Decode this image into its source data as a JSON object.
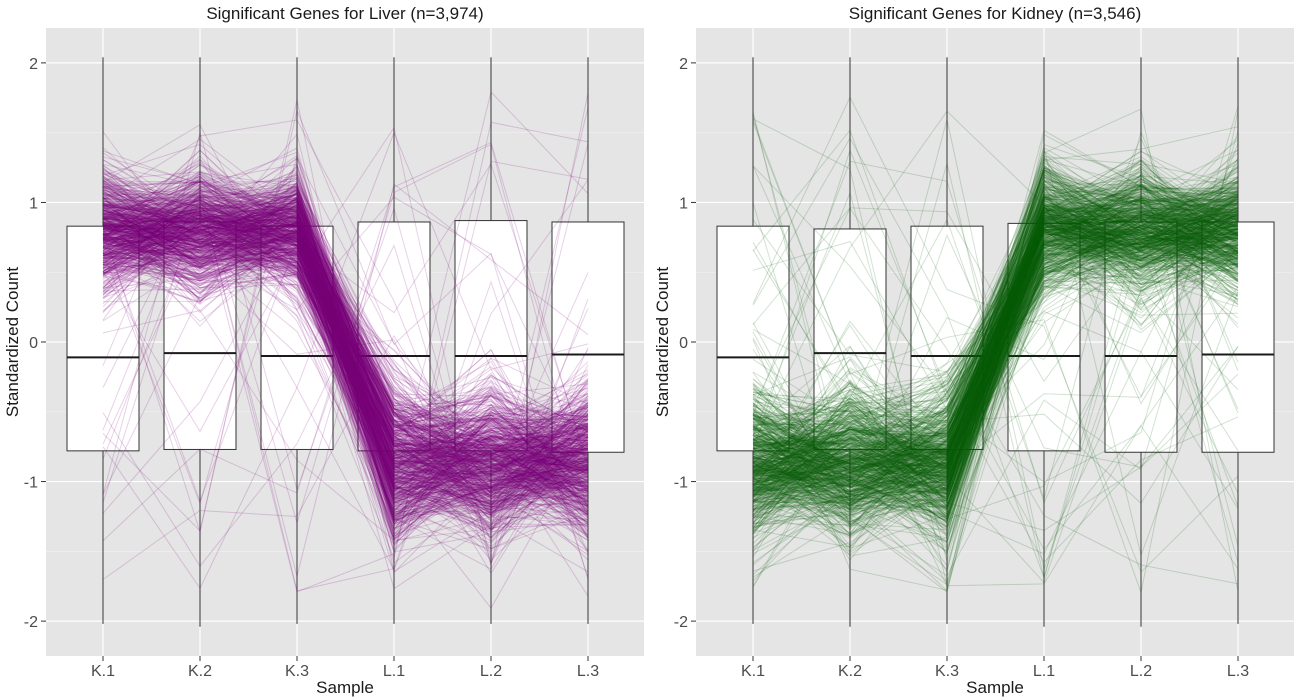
{
  "chart_data": [
    {
      "type": "boxplot-with-profile-lines",
      "title": "Significant Genes for Liver (n=3,974)",
      "xlabel": "Sample",
      "ylabel": "Standardized Count",
      "categories": [
        "K.1",
        "K.2",
        "K.3",
        "L.1",
        "L.2",
        "L.3"
      ],
      "yticks": [
        "-2",
        "-1",
        "0",
        "1",
        "2"
      ],
      "ylim": [
        -2.25,
        2.25
      ],
      "panel_background": "#e5e5e5",
      "grid": true,
      "line_color": "#7b007b",
      "line_opacity": 0.18,
      "boxes": [
        {
          "min": -2.02,
          "q1": -0.78,
          "median": -0.11,
          "q3": 0.83,
          "max": 2.04
        },
        {
          "min": -2.04,
          "q1": -0.77,
          "median": -0.08,
          "q3": 0.86,
          "max": 2.04
        },
        {
          "min": -2.02,
          "q1": -0.77,
          "median": -0.1,
          "q3": 0.83,
          "max": 2.04
        },
        {
          "min": -2.02,
          "q1": -0.78,
          "median": -0.1,
          "q3": 0.86,
          "max": 2.04
        },
        {
          "min": -2.02,
          "q1": -0.78,
          "median": -0.1,
          "q3": 0.87,
          "max": 2.04
        },
        {
          "min": -2.02,
          "q1": -0.79,
          "median": -0.09,
          "q3": 0.86,
          "max": 2.04
        }
      ],
      "profile_pattern": {
        "high_mean": 0.8,
        "low_mean": -0.85,
        "high_group": [
          "K.1",
          "K.2",
          "K.3"
        ],
        "low_group": [
          "L.1",
          "L.2",
          "L.3"
        ]
      }
    },
    {
      "type": "boxplot-with-profile-lines",
      "title": "Significant Genes for Kidney (n=3,546)",
      "xlabel": "Sample",
      "ylabel": "Standardized Count",
      "categories": [
        "K.1",
        "K.2",
        "K.3",
        "L.1",
        "L.2",
        "L.3"
      ],
      "yticks": [
        "-2",
        "-1",
        "0",
        "1",
        "2"
      ],
      "ylim": [
        -2.25,
        2.25
      ],
      "panel_background": "#e5e5e5",
      "grid": true,
      "line_color": "#0b5c0b",
      "line_opacity": 0.18,
      "boxes": [
        {
          "min": -2.02,
          "q1": -0.78,
          "median": -0.11,
          "q3": 0.83,
          "max": 2.04
        },
        {
          "min": -2.04,
          "q1": -0.77,
          "median": -0.08,
          "q3": 0.81,
          "max": 2.04
        },
        {
          "min": -2.02,
          "q1": -0.77,
          "median": -0.1,
          "q3": 0.83,
          "max": 2.04
        },
        {
          "min": -2.04,
          "q1": -0.78,
          "median": -0.1,
          "q3": 0.85,
          "max": 2.04
        },
        {
          "min": -2.04,
          "q1": -0.79,
          "median": -0.1,
          "q3": 0.86,
          "max": 2.04
        },
        {
          "min": -2.02,
          "q1": -0.79,
          "median": -0.09,
          "q3": 0.86,
          "max": 2.04
        }
      ],
      "profile_pattern": {
        "high_mean": 0.8,
        "low_mean": -0.85,
        "high_group": [
          "L.1",
          "L.2",
          "L.3"
        ],
        "low_group": [
          "K.1",
          "K.2",
          "K.3"
        ]
      }
    }
  ]
}
